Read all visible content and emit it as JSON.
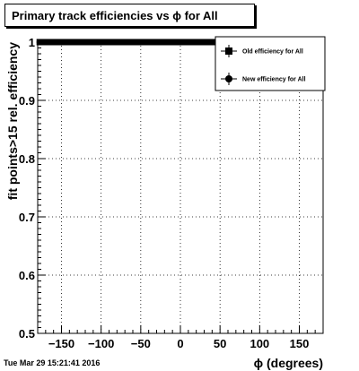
{
  "chart_data": {
    "type": "scatter",
    "title": "Primary track efficiencies vs ϕ for All",
    "xlabel": "ϕ (degrees)",
    "ylabel": "fit points>15 rel. efficiency",
    "xlim": [
      -180,
      180
    ],
    "ylim": [
      0.5,
      1.0
    ],
    "x_ticks": [
      -150,
      -100,
      -50,
      0,
      50,
      100,
      150
    ],
    "x_tick_labels": [
      "−150",
      "−100",
      "−50",
      "0",
      "50",
      "100",
      "150"
    ],
    "y_ticks": [
      0.5,
      0.6,
      0.7,
      0.8,
      0.9,
      1.0
    ],
    "y_tick_labels": [
      "0.5",
      "0.6",
      "0.7",
      "0.8",
      "0.9",
      "1"
    ],
    "grid": true,
    "legend_position": "top-right",
    "x": [
      -177.5,
      -172.5,
      -167.5,
      -162.5,
      -157.5,
      -152.5,
      -147.5,
      -142.5,
      -137.5,
      -132.5,
      -127.5,
      -122.5,
      -117.5,
      -112.5,
      -107.5,
      -102.5,
      -97.5,
      -92.5,
      -87.5,
      -82.5,
      -77.5,
      -72.5,
      -67.5,
      -62.5,
      -57.5,
      -52.5,
      -47.5,
      -42.5,
      -37.5,
      -32.5,
      -27.5,
      -22.5,
      -17.5,
      -12.5,
      -7.5,
      -2.5,
      2.5,
      7.5,
      12.5,
      17.5,
      22.5,
      27.5,
      32.5,
      37.5,
      42.5,
      47.5,
      52.5,
      57.5,
      62.5,
      67.5,
      72.5,
      77.5,
      82.5,
      87.5,
      92.5,
      97.5,
      102.5,
      107.5,
      112.5,
      117.5,
      122.5,
      127.5,
      132.5,
      137.5,
      142.5,
      147.5,
      152.5,
      157.5,
      162.5,
      167.5,
      172.5,
      177.5
    ],
    "series": [
      {
        "name": "Old efficiency  for All",
        "marker": "square",
        "color": "#000000",
        "values": [
          1,
          1,
          1,
          1,
          1,
          1,
          1,
          1,
          1,
          1,
          1,
          1,
          1,
          1,
          1,
          1,
          1,
          1,
          1,
          1,
          1,
          1,
          1,
          1,
          1,
          1,
          1,
          1,
          1,
          1,
          1,
          1,
          1,
          1,
          1,
          1,
          1,
          1,
          1,
          1,
          1,
          1,
          1,
          1,
          1,
          1,
          1,
          1,
          1,
          1,
          1,
          1,
          1,
          1,
          1,
          1,
          1,
          1,
          1,
          1,
          1,
          1,
          1,
          1,
          1,
          1,
          1,
          1,
          1,
          1,
          1,
          1
        ]
      },
      {
        "name": "New efficiency  for All",
        "marker": "circle",
        "color": "#000000",
        "values": [
          1,
          1,
          1,
          1,
          1,
          1,
          1,
          1,
          1,
          1,
          1,
          1,
          1,
          1,
          1,
          1,
          1,
          1,
          1,
          1,
          1,
          1,
          1,
          1,
          1,
          1,
          1,
          1,
          1,
          1,
          1,
          1,
          1,
          1,
          1,
          1,
          1,
          1,
          1,
          1,
          1,
          1,
          1,
          1,
          1,
          1,
          1,
          1,
          1,
          1,
          1,
          1,
          1,
          1,
          1,
          1,
          1,
          1,
          1,
          1,
          1,
          1,
          1,
          1,
          1,
          1,
          1,
          1,
          1,
          1,
          1,
          1
        ]
      }
    ]
  },
  "footer": {
    "timestamp": "Tue Mar 29 15:21:41 2016"
  }
}
